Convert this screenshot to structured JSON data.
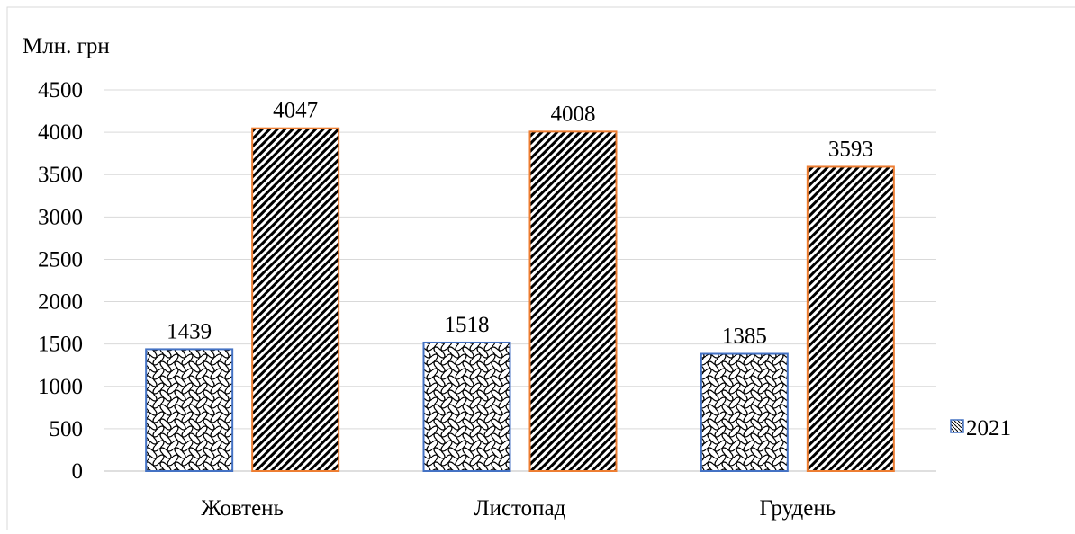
{
  "chart_data": {
    "type": "bar",
    "ylabel": "Млн. грн",
    "categories": [
      "Жовтень",
      "Листопад",
      "Грудень"
    ],
    "ylim": [
      0,
      4500
    ],
    "yticks": [
      0,
      500,
      1000,
      1500,
      2000,
      2500,
      3000,
      3500,
      4000,
      4500
    ],
    "grid": true,
    "legend": "right",
    "series": [
      {
        "name": "2021",
        "values": [
          1439,
          1518,
          1385
        ],
        "color": "#4472C4",
        "pattern": "wave"
      },
      {
        "name": "",
        "values": [
          4047,
          4008,
          3593
        ],
        "color": "#ED7D31",
        "pattern": "diagonal"
      }
    ]
  }
}
